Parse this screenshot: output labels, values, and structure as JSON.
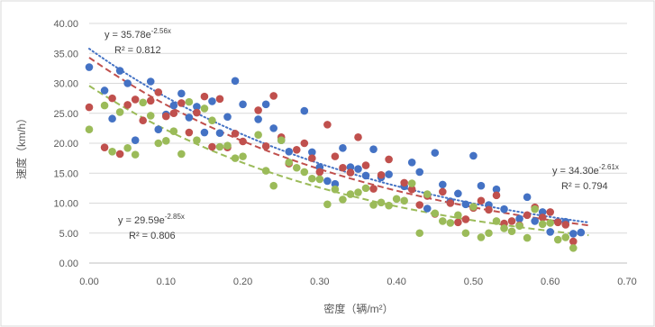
{
  "chart_data": {
    "type": "scatter",
    "title": "",
    "xlabel": "密度（辆/m²）",
    "ylabel": "速度（km/h）",
    "xlim": [
      0,
      0.7
    ],
    "ylim": [
      0,
      40
    ],
    "x_ticks": [
      "0.00",
      "0.10",
      "0.20",
      "0.30",
      "0.40",
      "0.50",
      "0.60",
      "0.70"
    ],
    "y_ticks": [
      "0.00",
      "5.00",
      "10.00",
      "15.00",
      "20.00",
      "25.00",
      "30.00",
      "35.00",
      "40.00"
    ],
    "grid": "horizontal",
    "legend": "none",
    "series": [
      {
        "color": "#4472C4",
        "trendline": {
          "type": "exponential",
          "a": 35.78,
          "b": -2.56,
          "style": "dotted"
        },
        "equation": "y = 35.78e",
        "exponent": "-2.56x",
        "r2": "R² = 0.812",
        "points": [
          [
            0.0,
            32.7
          ],
          [
            0.02,
            28.8
          ],
          [
            0.03,
            24.1
          ],
          [
            0.04,
            32.1
          ],
          [
            0.05,
            30.0
          ],
          [
            0.06,
            20.5
          ],
          [
            0.08,
            30.3
          ],
          [
            0.09,
            22.3
          ],
          [
            0.1,
            24.8
          ],
          [
            0.11,
            26.3
          ],
          [
            0.12,
            28.3
          ],
          [
            0.13,
            24.3
          ],
          [
            0.14,
            26.1
          ],
          [
            0.15,
            21.8
          ],
          [
            0.16,
            27.0
          ],
          [
            0.17,
            21.7
          ],
          [
            0.18,
            24.4
          ],
          [
            0.19,
            30.4
          ],
          [
            0.2,
            26.5
          ],
          [
            0.22,
            24.0
          ],
          [
            0.23,
            26.5
          ],
          [
            0.24,
            22.5
          ],
          [
            0.25,
            20.5
          ],
          [
            0.26,
            18.6
          ],
          [
            0.28,
            25.4
          ],
          [
            0.29,
            18.5
          ],
          [
            0.3,
            16.0
          ],
          [
            0.31,
            13.7
          ],
          [
            0.32,
            13.2
          ],
          [
            0.33,
            19.2
          ],
          [
            0.34,
            16.0
          ],
          [
            0.35,
            15.7
          ],
          [
            0.36,
            14.6
          ],
          [
            0.37,
            19.0
          ],
          [
            0.38,
            14.3
          ],
          [
            0.39,
            14.8
          ],
          [
            0.41,
            12.8
          ],
          [
            0.42,
            16.8
          ],
          [
            0.43,
            15.2
          ],
          [
            0.44,
            9.1
          ],
          [
            0.45,
            18.4
          ],
          [
            0.46,
            13.1
          ],
          [
            0.47,
            10.3
          ],
          [
            0.48,
            11.6
          ],
          [
            0.49,
            9.8
          ],
          [
            0.5,
            17.9
          ],
          [
            0.51,
            12.9
          ],
          [
            0.52,
            9.7
          ],
          [
            0.53,
            12.3
          ],
          [
            0.54,
            9.0
          ],
          [
            0.56,
            7.4
          ],
          [
            0.57,
            11.0
          ],
          [
            0.58,
            7.0
          ],
          [
            0.59,
            8.5
          ],
          [
            0.6,
            5.2
          ],
          [
            0.61,
            6.9
          ],
          [
            0.62,
            6.9
          ],
          [
            0.63,
            4.9
          ],
          [
            0.64,
            5.1
          ]
        ]
      },
      {
        "color": "#C0504D",
        "trendline": {
          "type": "exponential",
          "a": 34.3,
          "b": -2.61,
          "style": "dashed"
        },
        "equation": "y = 34.30e",
        "exponent": "-2.61x",
        "r2": "R² = 0.794",
        "points": [
          [
            0.0,
            26.0
          ],
          [
            0.02,
            19.3
          ],
          [
            0.03,
            27.5
          ],
          [
            0.04,
            18.2
          ],
          [
            0.05,
            26.4
          ],
          [
            0.06,
            27.3
          ],
          [
            0.07,
            23.8
          ],
          [
            0.08,
            27.1
          ],
          [
            0.09,
            28.5
          ],
          [
            0.1,
            24.5
          ],
          [
            0.11,
            25.0
          ],
          [
            0.12,
            26.7
          ],
          [
            0.13,
            21.8
          ],
          [
            0.14,
            25.1
          ],
          [
            0.15,
            27.8
          ],
          [
            0.16,
            19.4
          ],
          [
            0.17,
            27.4
          ],
          [
            0.18,
            19.3
          ],
          [
            0.19,
            21.6
          ],
          [
            0.2,
            20.3
          ],
          [
            0.22,
            25.5
          ],
          [
            0.23,
            19.5
          ],
          [
            0.24,
            27.9
          ],
          [
            0.25,
            21.0
          ],
          [
            0.26,
            16.6
          ],
          [
            0.27,
            18.9
          ],
          [
            0.28,
            20.0
          ],
          [
            0.29,
            17.5
          ],
          [
            0.3,
            15.2
          ],
          [
            0.31,
            23.1
          ],
          [
            0.32,
            17.8
          ],
          [
            0.33,
            15.9
          ],
          [
            0.34,
            15.1
          ],
          [
            0.35,
            21.0
          ],
          [
            0.36,
            16.3
          ],
          [
            0.37,
            12.4
          ],
          [
            0.38,
            14.7
          ],
          [
            0.39,
            17.3
          ],
          [
            0.41,
            13.4
          ],
          [
            0.42,
            12.3
          ],
          [
            0.43,
            9.7
          ],
          [
            0.44,
            11.2
          ],
          [
            0.45,
            8.2
          ],
          [
            0.46,
            11.9
          ],
          [
            0.47,
            10.0
          ],
          [
            0.48,
            6.8
          ],
          [
            0.49,
            7.3
          ],
          [
            0.5,
            9.2
          ],
          [
            0.51,
            10.4
          ],
          [
            0.52,
            8.9
          ],
          [
            0.53,
            11.3
          ],
          [
            0.54,
            6.6
          ],
          [
            0.55,
            7.0
          ],
          [
            0.56,
            6.3
          ],
          [
            0.57,
            8.0
          ],
          [
            0.58,
            9.3
          ],
          [
            0.59,
            7.6
          ],
          [
            0.6,
            8.5
          ],
          [
            0.61,
            6.8
          ],
          [
            0.62,
            6.4
          ],
          [
            0.63,
            3.6
          ]
        ]
      },
      {
        "color": "#9BBB59",
        "trendline": {
          "type": "exponential",
          "a": 29.59,
          "b": -2.85,
          "style": "dashed"
        },
        "equation": "y = 29.59e",
        "exponent": "-2.85x",
        "r2": "R² = 0.806",
        "points": [
          [
            0.0,
            22.3
          ],
          [
            0.02,
            26.3
          ],
          [
            0.03,
            18.6
          ],
          [
            0.04,
            25.2
          ],
          [
            0.05,
            19.2
          ],
          [
            0.06,
            18.1
          ],
          [
            0.07,
            26.8
          ],
          [
            0.08,
            24.6
          ],
          [
            0.09,
            20.0
          ],
          [
            0.1,
            20.4
          ],
          [
            0.11,
            22.0
          ],
          [
            0.12,
            18.2
          ],
          [
            0.13,
            26.9
          ],
          [
            0.14,
            20.5
          ],
          [
            0.15,
            25.8
          ],
          [
            0.16,
            23.8
          ],
          [
            0.17,
            19.4
          ],
          [
            0.18,
            19.6
          ],
          [
            0.19,
            17.5
          ],
          [
            0.2,
            17.8
          ],
          [
            0.22,
            21.4
          ],
          [
            0.23,
            15.4
          ],
          [
            0.24,
            12.9
          ],
          [
            0.25,
            20.5
          ],
          [
            0.26,
            16.8
          ],
          [
            0.27,
            15.9
          ],
          [
            0.28,
            15.2
          ],
          [
            0.29,
            14.1
          ],
          [
            0.3,
            14.0
          ],
          [
            0.31,
            9.8
          ],
          [
            0.32,
            12.3
          ],
          [
            0.33,
            10.6
          ],
          [
            0.34,
            11.5
          ],
          [
            0.35,
            11.8
          ],
          [
            0.36,
            12.5
          ],
          [
            0.37,
            9.7
          ],
          [
            0.38,
            10.1
          ],
          [
            0.39,
            9.6
          ],
          [
            0.4,
            10.7
          ],
          [
            0.41,
            10.4
          ],
          [
            0.42,
            13.3
          ],
          [
            0.43,
            5.0
          ],
          [
            0.44,
            11.5
          ],
          [
            0.45,
            8.3
          ],
          [
            0.46,
            7.0
          ],
          [
            0.47,
            6.7
          ],
          [
            0.48,
            8.0
          ],
          [
            0.49,
            5.0
          ],
          [
            0.5,
            9.4
          ],
          [
            0.51,
            4.3
          ],
          [
            0.52,
            5.0
          ],
          [
            0.53,
            7.0
          ],
          [
            0.54,
            5.8
          ],
          [
            0.55,
            5.3
          ],
          [
            0.56,
            6.2
          ],
          [
            0.57,
            4.2
          ],
          [
            0.58,
            9.0
          ],
          [
            0.59,
            6.5
          ],
          [
            0.6,
            6.7
          ],
          [
            0.61,
            3.9
          ],
          [
            0.62,
            4.3
          ],
          [
            0.63,
            2.5
          ]
        ]
      }
    ]
  }
}
